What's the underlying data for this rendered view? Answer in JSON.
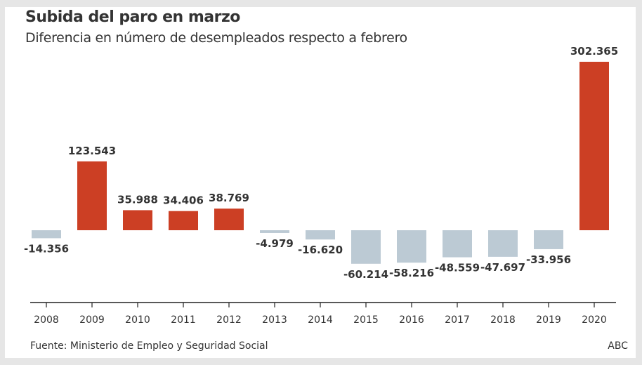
{
  "chart_data": {
    "type": "bar",
    "title": "Subida del paro en marzo",
    "subtitle": "Diferencia en número de desempleados respecto a febrero",
    "categories": [
      "2008",
      "2009",
      "2010",
      "2011",
      "2012",
      "2013",
      "2014",
      "2015",
      "2016",
      "2017",
      "2018",
      "2019",
      "2020"
    ],
    "values": [
      -14356,
      123543,
      35988,
      34406,
      38769,
      -4979,
      -16620,
      -60214,
      -58216,
      -48559,
      -47697,
      -33956,
      302365
    ],
    "data_labels": [
      "-14.356",
      "123.543",
      "35.988",
      "34.406",
      "38.769",
      "-4.979",
      "-16.620",
      "-60.214",
      "-58.216",
      "-48.559",
      "-47.697",
      "-33.956",
      "302.365"
    ],
    "xlabel": "",
    "ylabel": "",
    "grid": false,
    "colors": {
      "positive": "#cc3f24",
      "negative": "#bccad4"
    }
  },
  "footer": {
    "source": "Fuente: Ministerio de Empleo y Seguridad Social",
    "credit": "ABC"
  }
}
